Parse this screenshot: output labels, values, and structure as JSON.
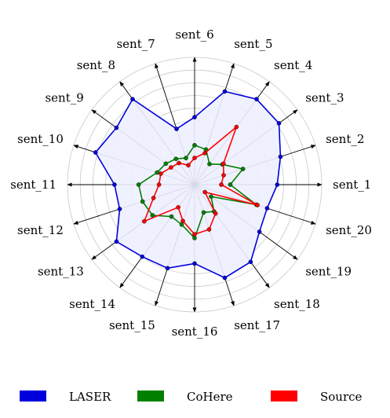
{
  "chart_data": {
    "type": "radar",
    "axes": [
      "sent_1",
      "sent_2",
      "sent_3",
      "sent_4",
      "sent_5",
      "sent_6",
      "sent_7",
      "sent_8",
      "sent_9",
      "sent_10",
      "sent_11",
      "sent_12",
      "sent_13",
      "sent_14",
      "sent_15",
      "sent_16",
      "sent_17",
      "sent_18",
      "sent_19",
      "sent_20"
    ],
    "rmax": 10,
    "grid_rings": 10,
    "grid": true,
    "legend_position": "bottom",
    "series": [
      {
        "name": "LASER",
        "color": "#0000dd",
        "fill": "#eef0ff",
        "values": [
          6.5,
          7.1,
          8.2,
          8.3,
          7.7,
          5.3,
          4.6,
          8.3,
          7.6,
          8.2,
          6.3,
          6.2,
          7.6,
          7.0,
          6.9,
          6.2,
          7.7,
          7.5,
          6.3,
          6.0
        ]
      },
      {
        "name": "CoHere",
        "color": "#008000",
        "values": [
          2.8,
          4.0,
          2.7,
          2.0,
          2.9,
          3.1,
          2.2,
          2.5,
          2.8,
          3.1,
          4.4,
          4.3,
          4.1,
          3.1,
          3.3,
          4.2,
          2.3,
          2.6,
          1.6,
          5.1
        ]
      },
      {
        "name": "Source",
        "color": "#ff0000",
        "values": [
          2.1,
          2.4,
          2.8,
          5.6,
          2.6,
          2.1,
          1.6,
          2.1,
          2.3,
          2.8,
          2.8,
          3.4,
          4.9,
          2.2,
          3.0,
          3.9,
          3.7,
          2.8,
          1.0,
          5.2
        ]
      }
    ]
  }
}
